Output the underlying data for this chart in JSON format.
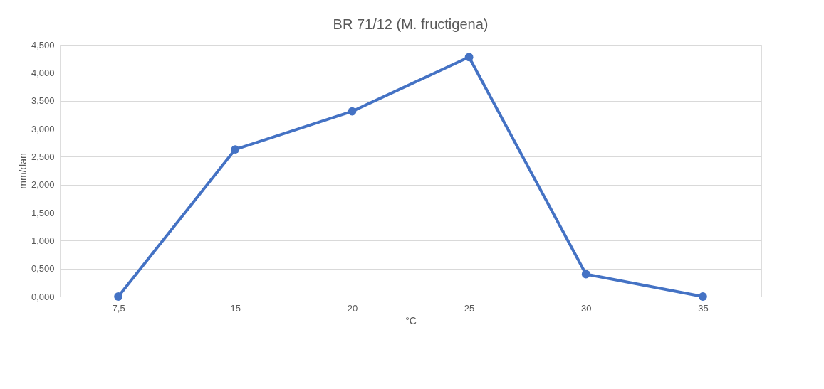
{
  "chart_data": {
    "type": "line",
    "title": "BR 71/12 (M. fructigena)",
    "xlabel": "°C",
    "ylabel": "mm/dan",
    "categories": [
      "7,5",
      "15",
      "20",
      "25",
      "30",
      "35"
    ],
    "series": [
      {
        "color": "#4472c4",
        "values": [
          0,
          2.63,
          3.31,
          4.28,
          0.4,
          0
        ]
      }
    ],
    "ylim": [
      0,
      4.5
    ],
    "yticks": [
      {
        "value": 0,
        "label": "0,000"
      },
      {
        "value": 0.5,
        "label": "0,500"
      },
      {
        "value": 1,
        "label": "1,000"
      },
      {
        "value": 1.5,
        "label": "1,500"
      },
      {
        "value": 2,
        "label": "2,000"
      },
      {
        "value": 2.5,
        "label": "2,500"
      },
      {
        "value": 3,
        "label": "3,000"
      },
      {
        "value": 3.5,
        "label": "3,500"
      },
      {
        "value": 4,
        "label": "4,000"
      },
      {
        "value": 4.5,
        "label": "4,500"
      }
    ],
    "grid": "y",
    "marker": "circle",
    "line_style": "solid"
  }
}
